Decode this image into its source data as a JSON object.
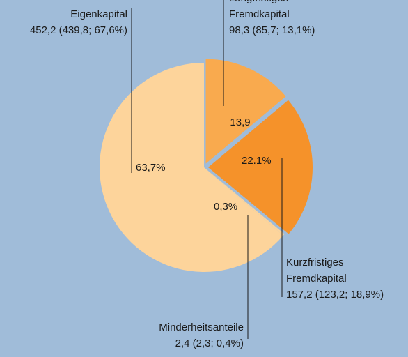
{
  "chart_data": {
    "type": "pie",
    "categories": [
      [
        "Langfristiges",
        "Fremdkapital"
      ],
      [
        "Kurzfristiges",
        "Fremdkapital"
      ],
      [
        "Minderheitsanteile"
      ],
      [
        "Eigenkapital"
      ]
    ],
    "details": [
      "98,3 (85,7; 13,1%)",
      "157,2 (123,2; 18,9%)",
      "2,4 (2,3; 0,4%)",
      "452,2 (439,8; 67,6%)"
    ],
    "values": [
      13.9,
      22.1,
      0.3,
      63.7
    ],
    "value_labels": [
      "13,9",
      "22.1%",
      "0,3%",
      "63,7%"
    ],
    "colors": [
      "#f9aa4e",
      "#f5922a",
      "#fdd49b",
      "#fdd49b"
    ],
    "explode": [
      true,
      true,
      false,
      false
    ]
  }
}
